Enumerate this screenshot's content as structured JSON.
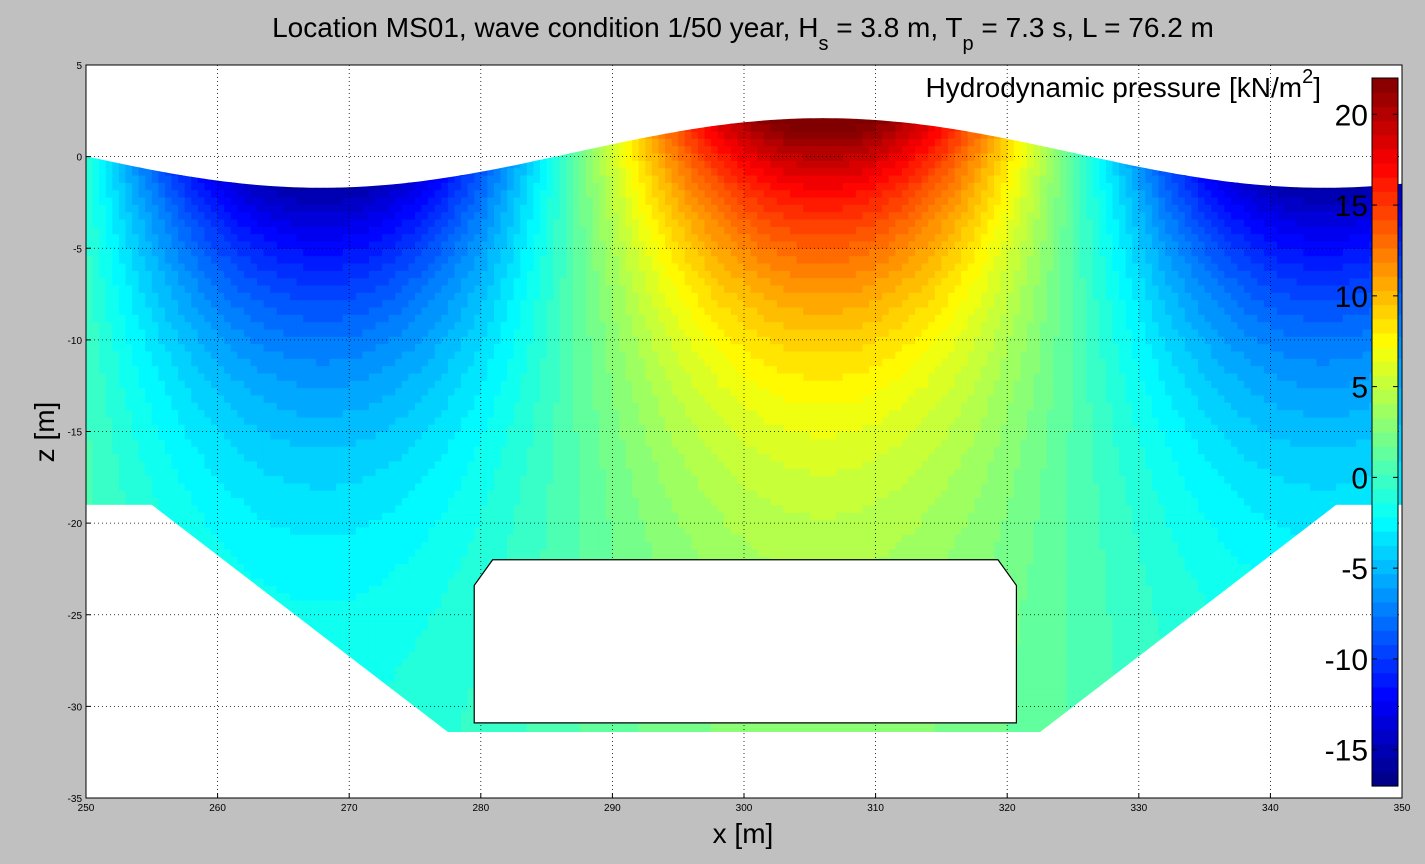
{
  "chart_data": {
    "type": "heatmap",
    "title": {
      "main": "Location MS01, wave condition 1/50 year, H",
      "hs_sub": "s",
      "hs_value": " = 3.8 m, T",
      "tp_sub": "p",
      "tp_value": " = 7.3 s, L = 76.2 m"
    },
    "xlabel": "x [m]",
    "ylabel": "z [m]",
    "xlim": [
      250,
      350
    ],
    "ylim": [
      -35,
      5
    ],
    "xticks": [
      "250",
      "260",
      "270",
      "280",
      "290",
      "300",
      "310",
      "320",
      "330",
      "340",
      "350"
    ],
    "yticks": [
      "5",
      "0",
      "-5",
      "-10",
      "-15",
      "-20",
      "-25",
      "-30",
      "-35"
    ],
    "grid": true,
    "wave": {
      "crest_x": 306,
      "wavelength": 76.2,
      "height": 3.8,
      "mean_level": 0.2
    },
    "pressure_field": {
      "min": -17,
      "max": 22,
      "x_peak": 306,
      "amplitude": 19
    },
    "trench": {
      "top_level": -19,
      "bottom_level": -31.4,
      "left_shoulder_x": 255,
      "left_toe_x": 277.5,
      "right_toe_x": 322.5,
      "right_shoulder_x": 345
    },
    "structure": {
      "x_left": 279.5,
      "x_right": 320.7,
      "z_top": -22,
      "z_bottom": -30.9,
      "chamfer": 1.4
    },
    "colorbar": {
      "label_main": "Hydrodynamic pressure [kN/m",
      "label_sup": "2",
      "label_close": "]",
      "ticks": [
        "20",
        "15",
        "10",
        "5",
        "0",
        "-5",
        "-10",
        "-15"
      ],
      "levels": 50
    }
  }
}
